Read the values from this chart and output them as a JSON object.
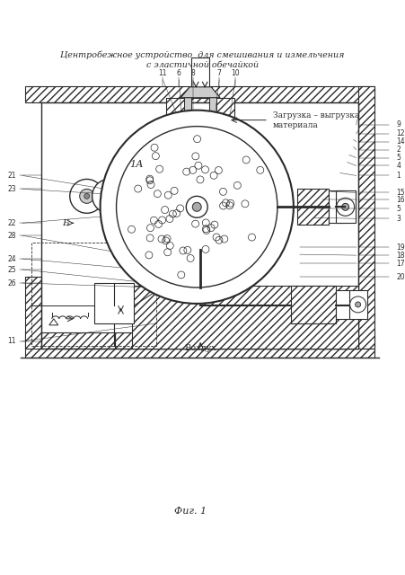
{
  "title_line1": "Центробежное устройство  для смешивания и измельчения",
  "title_line2": "с эластичной обечайкой",
  "fig_label": "Фиг. 1",
  "bg_color": "#ffffff",
  "line_color": "#2a2a2a",
  "hatch_color": "#888888",
  "label_loading": "Загрузка – выгрузка",
  "label_loading2": "материала",
  "label_air": "Воздух",
  "label_1A": "1А",
  "label_B": "Б",
  "numbers_right": [
    "9",
    "12",
    "14",
    "2",
    "5",
    "4",
    "1",
    "15",
    "16",
    "5",
    "3",
    "19",
    "18",
    "17",
    "20"
  ],
  "numbers_right_y": [
    138,
    148,
    157,
    166,
    175,
    184,
    195,
    214,
    222,
    232,
    243,
    275,
    284,
    293,
    308
  ],
  "numbers_left": [
    "21",
    "23",
    "22",
    "28",
    "24",
    "25",
    "26",
    "11"
  ],
  "numbers_left_y": [
    195,
    210,
    248,
    262,
    288,
    300,
    315,
    380
  ],
  "numbers_top": [
    "11",
    "6",
    "8",
    "7",
    "10"
  ],
  "numbers_top_x": [
    182,
    200,
    216,
    245,
    263
  ]
}
